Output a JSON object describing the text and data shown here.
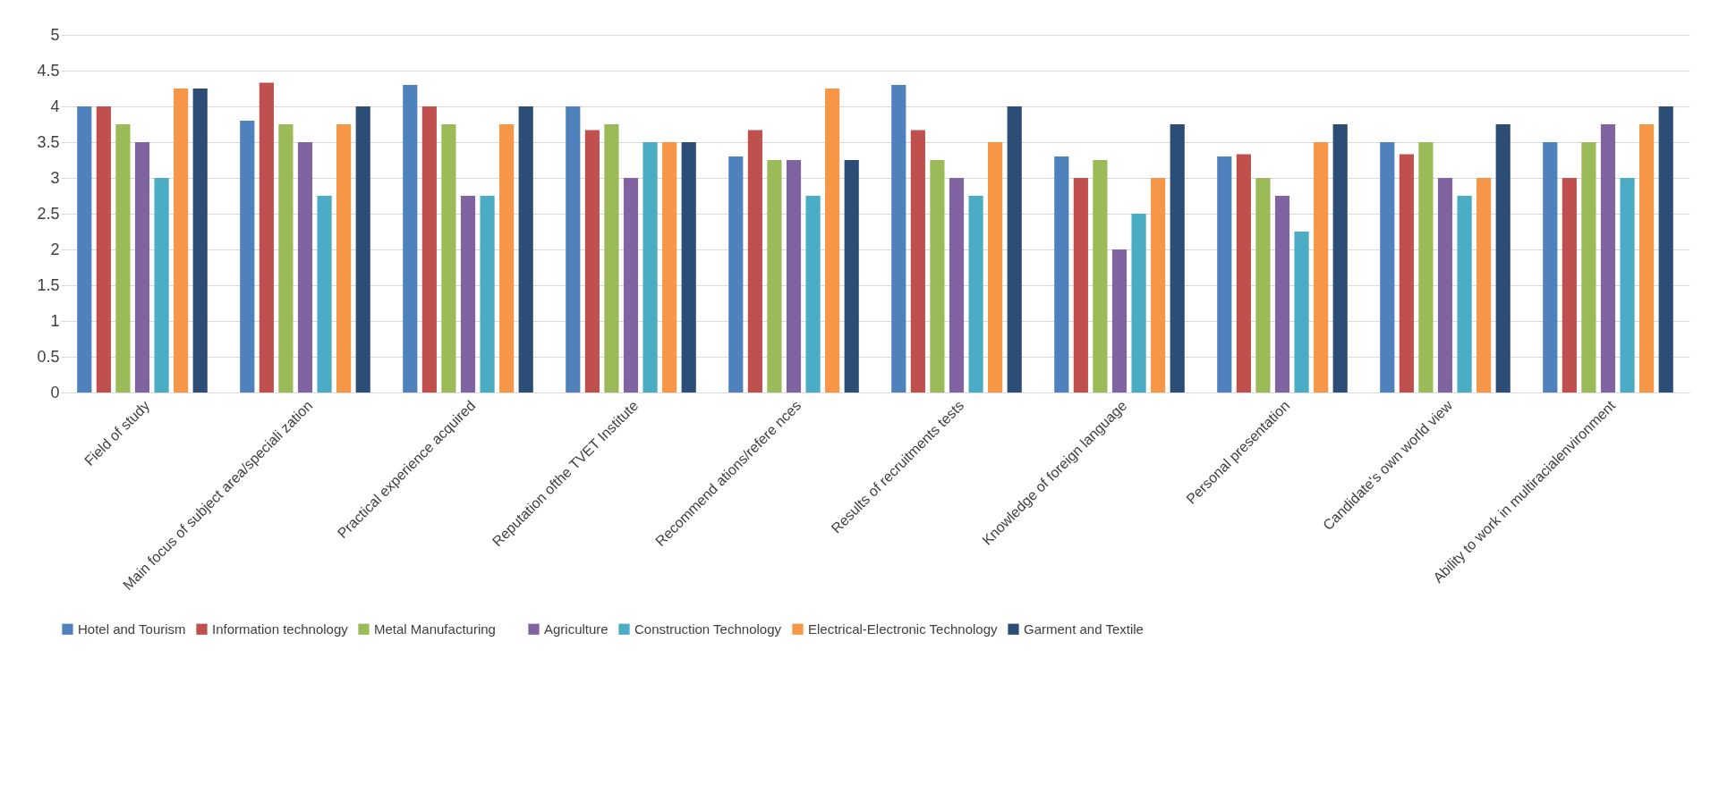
{
  "chart_data": {
    "type": "bar",
    "categories": [
      "Field of study",
      "Main focus  of subject    area/speciali zation",
      "Practical experience acquired",
      "Reputation    ofthe TVET Institute",
      "Recommend ations/refere nces",
      "Results of    recruitments tests",
      "Knowledge of foreign   language",
      "Personal      presentation",
      "Candidate's own world  view",
      "Ability to work in multiracialenvironment"
    ],
    "series": [
      {
        "name": "Hotel and Tourism",
        "color": "#4f81bd",
        "values": [
          4,
          3.8,
          4.3,
          4,
          3.3,
          4.3,
          3.3,
          3.3,
          3.5,
          3.5
        ]
      },
      {
        "name": "Information technology",
        "color": "#c0504d",
        "values": [
          4,
          4.33,
          4,
          3.67,
          3.67,
          3.67,
          3,
          3.33,
          3.33,
          3
        ]
      },
      {
        "name": "Metal       Manufacturing",
        "color": "#9bbb59",
        "values": [
          3.75,
          3.75,
          3.75,
          3.75,
          3.25,
          3.25,
          3.25,
          3,
          3.5,
          3.5
        ]
      },
      {
        "name": "Agriculture",
        "color": "#8064a2",
        "values": [
          3.5,
          3.5,
          2.75,
          3,
          3.25,
          3,
          2,
          2.75,
          3,
          3.75
        ]
      },
      {
        "name": "Construction Technology",
        "color": "#4bacc6",
        "values": [
          3,
          2.75,
          2.75,
          3.5,
          2.75,
          2.75,
          2.5,
          2.25,
          2.75,
          3
        ]
      },
      {
        "name": "Electrical-Electronic Technology",
        "color": "#f79646",
        "values": [
          4.25,
          3.75,
          3.75,
          3.5,
          4.25,
          3.5,
          3,
          3.5,
          3,
          3.75
        ]
      },
      {
        "name": "Garment   and Textile",
        "color": "#2c4d75",
        "values": [
          4.25,
          4,
          4,
          3.5,
          3.25,
          4,
          3.75,
          3.75,
          3.75,
          4
        ]
      }
    ],
    "ylim": [
      0,
      5
    ],
    "yticks": [
      0,
      0.5,
      1,
      1.5,
      2,
      2.5,
      3,
      3.5,
      4,
      4.5,
      5
    ],
    "grid": "y",
    "legend": "bottom"
  }
}
